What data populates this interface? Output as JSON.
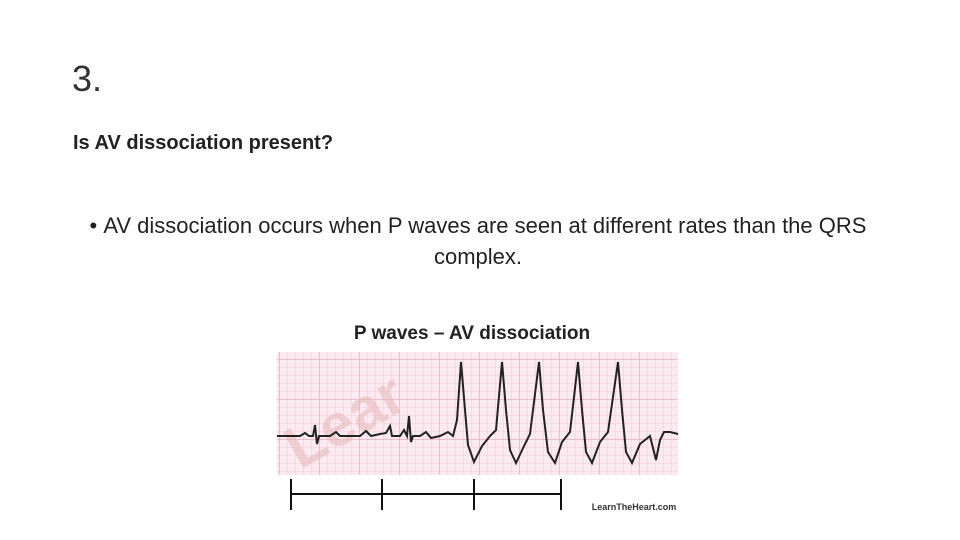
{
  "slide": {
    "number": "3.",
    "heading": "Is AV dissociation present?",
    "bullet": "AV dissociation occurs when P waves are seen at different rates than the QRS complex.",
    "figure": {
      "title": "P waves – AV dissociation",
      "watermark": "Lear",
      "credit": "LearnTheHeart.com"
    }
  }
}
